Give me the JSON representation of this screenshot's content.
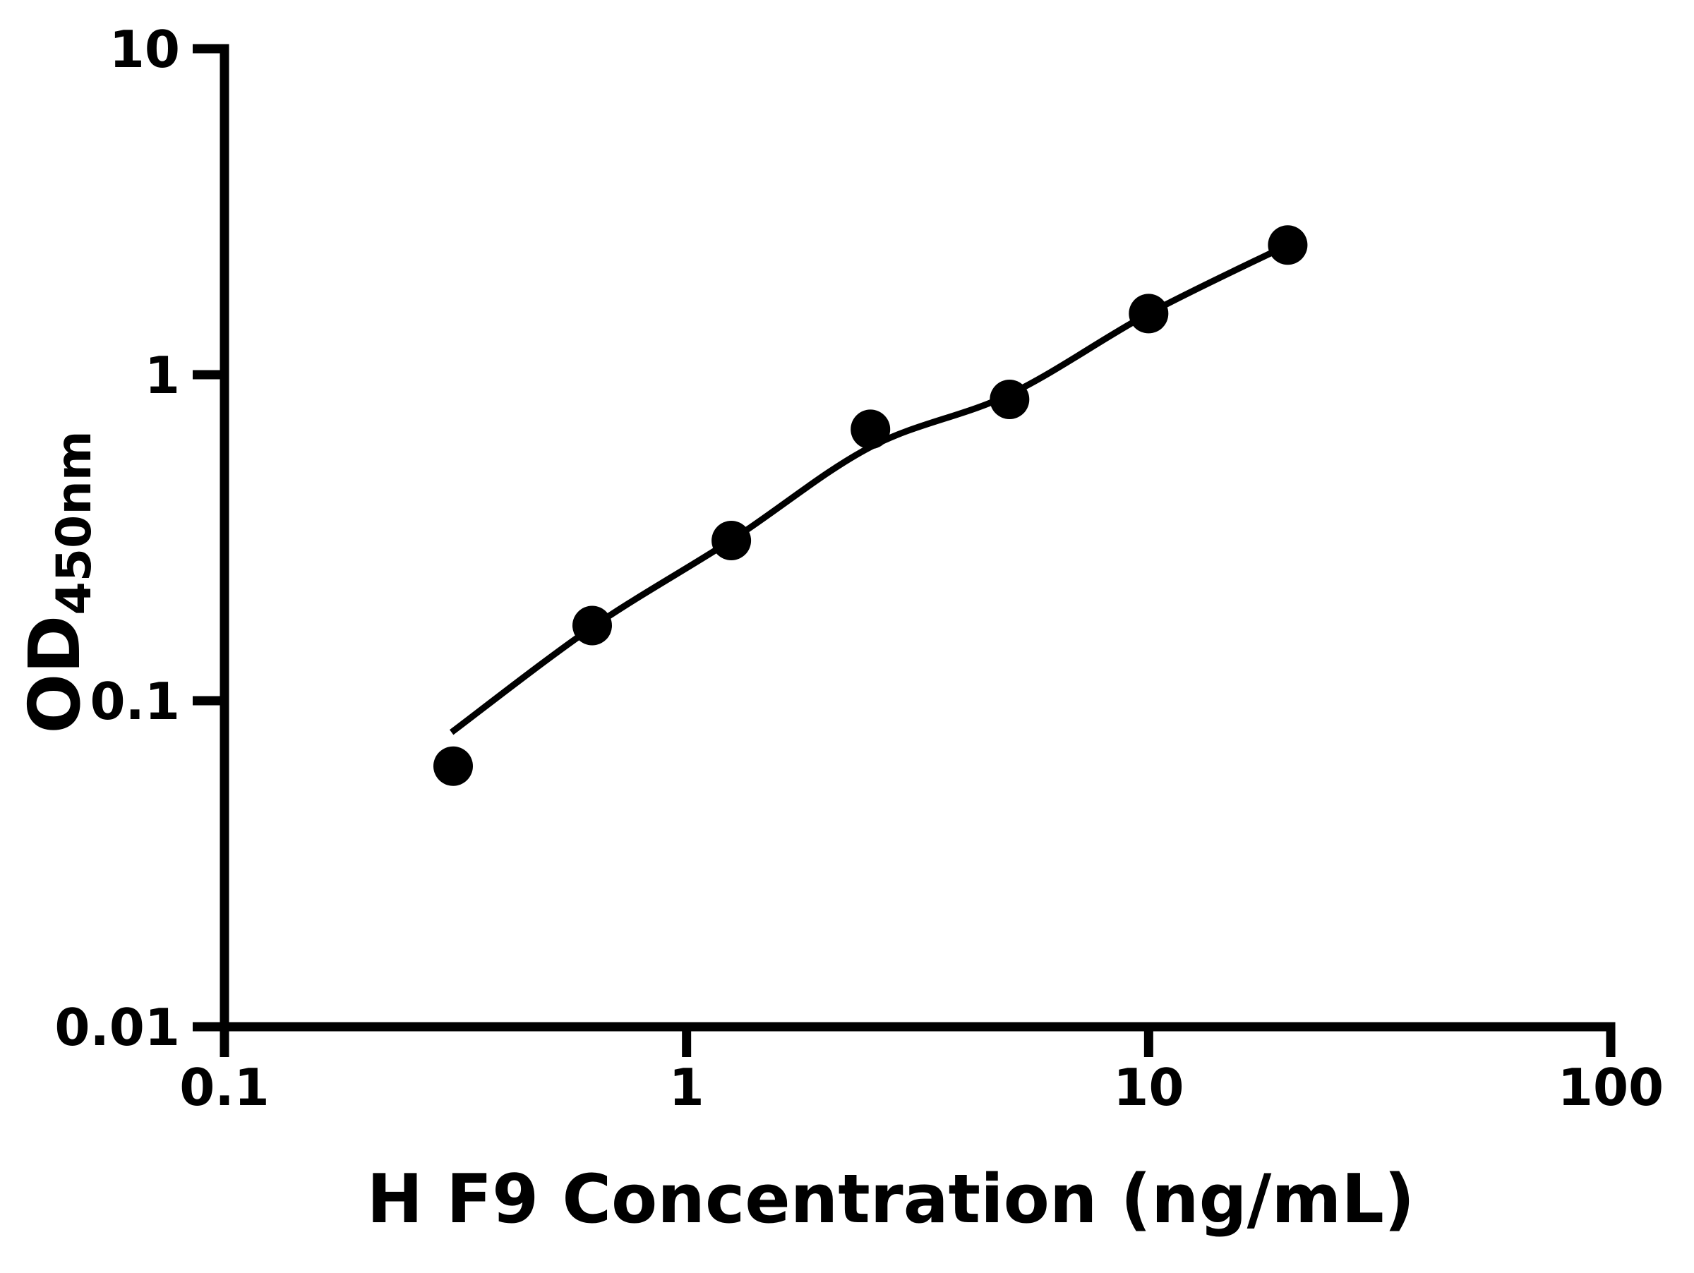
{
  "chart_data": {
    "type": "scatter",
    "title": "",
    "xlabel": "H F9 Concentration (ng/mL)",
    "ylabel_main": "OD",
    "ylabel_sub": "450nm",
    "x_scale": "log",
    "y_scale": "log",
    "xlim": [
      0.1,
      100
    ],
    "ylim": [
      0.01,
      10
    ],
    "grid": "off",
    "legend": "none",
    "background_color": "#ffffff",
    "axis_color": "#000000",
    "marker_color": "#000000",
    "line_color": "#000000",
    "x_ticks": [
      {
        "value": 0.1,
        "label": "0.1"
      },
      {
        "value": 1,
        "label": "1"
      },
      {
        "value": 10,
        "label": "10"
      },
      {
        "value": 100,
        "label": "100"
      }
    ],
    "y_ticks": [
      {
        "value": 0.01,
        "label": "0.01"
      },
      {
        "value": 0.1,
        "label": "0.1"
      },
      {
        "value": 1,
        "label": "1"
      },
      {
        "value": 10,
        "label": "10"
      }
    ],
    "series": [
      {
        "name": "standard-data-points",
        "role": "scatter",
        "points": [
          [
            0.3125,
            0.063
          ],
          [
            0.625,
            0.17
          ],
          [
            1.25,
            0.31
          ],
          [
            2.5,
            0.68
          ],
          [
            5,
            0.84
          ],
          [
            10,
            1.54
          ],
          [
            20,
            2.5
          ]
        ]
      },
      {
        "name": "fitted-curve",
        "role": "line",
        "points": [
          [
            0.31,
            0.08
          ],
          [
            0.625,
            0.168
          ],
          [
            1.26,
            0.313
          ],
          [
            2.5,
            0.6
          ],
          [
            5.0,
            0.87
          ],
          [
            10.0,
            1.54
          ],
          [
            20.0,
            2.5
          ]
        ]
      }
    ]
  }
}
